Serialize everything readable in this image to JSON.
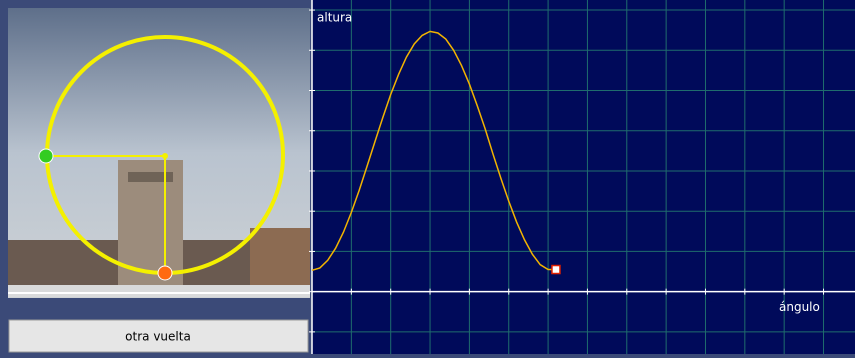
{
  "button": {
    "label": "otra vuelta"
  },
  "chart_data": {
    "type": "line",
    "y_label": "altura",
    "x_label": "ángulo",
    "x": [
      0,
      0.2,
      0.4,
      0.6,
      0.8,
      1.0,
      1.2,
      1.4,
      1.6,
      1.8,
      2.0,
      2.2,
      2.4,
      2.6,
      2.8,
      3.0,
      3.2,
      3.4,
      3.6,
      3.8,
      4.0,
      4.2,
      4.4,
      4.6,
      4.8,
      5.0,
      5.2,
      5.4,
      5.6,
      5.8,
      6.0,
      6.2
    ],
    "values": [
      0.53,
      0.59,
      0.78,
      1.08,
      1.48,
      1.97,
      2.52,
      3.12,
      3.73,
      4.33,
      4.9,
      5.4,
      5.83,
      6.16,
      6.37,
      6.47,
      6.43,
      6.28,
      6.0,
      5.62,
      5.16,
      4.62,
      4.05,
      3.42,
      2.82,
      2.25,
      1.73,
      1.29,
      0.93,
      0.67,
      0.55,
      0.55
    ],
    "color": "#f2b400",
    "xlim": [
      0,
      13.8
    ],
    "ylim": [
      -1.55,
      7.25
    ],
    "xticks": [
      0,
      1,
      2,
      3,
      4,
      5,
      6,
      7,
      8,
      9,
      10,
      11,
      12,
      13
    ],
    "yticks": [
      -1,
      0,
      1,
      2,
      3,
      4,
      5,
      6,
      7
    ],
    "grid": true
  }
}
